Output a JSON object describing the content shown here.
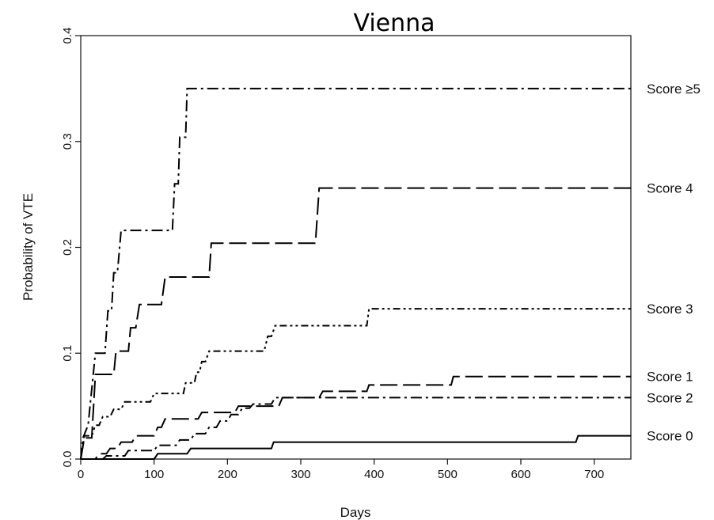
{
  "chart_data": {
    "type": "line",
    "title": "Vienna",
    "xlabel": "Days",
    "ylabel": "Probability of VTE",
    "xlim": [
      0,
      750
    ],
    "ylim": [
      0,
      0.4
    ],
    "xticks": [
      "0",
      "100",
      "200",
      "300",
      "400",
      "500",
      "600",
      "700"
    ],
    "yticks": [
      "0.0",
      "0.1",
      "0.2",
      "0.3",
      "0.4"
    ],
    "grid": false,
    "legend": "direct labels at right end of each line",
    "series": [
      {
        "name": "Score ≥5",
        "dash": "dashdot",
        "points": [
          [
            0,
            0
          ],
          [
            3,
            0.02
          ],
          [
            10,
            0.032
          ],
          [
            20,
            0.1
          ],
          [
            33,
            0.1
          ],
          [
            37,
            0.14
          ],
          [
            42,
            0.14
          ],
          [
            45,
            0.176
          ],
          [
            50,
            0.176
          ],
          [
            55,
            0.216
          ],
          [
            125,
            0.216
          ],
          [
            128,
            0.26
          ],
          [
            133,
            0.26
          ],
          [
            135,
            0.304
          ],
          [
            143,
            0.304
          ],
          [
            145,
            0.35
          ],
          [
            750,
            0.35
          ]
        ]
      },
      {
        "name": "Score 4",
        "dash": "longdash",
        "points": [
          [
            0,
            0
          ],
          [
            5,
            0.02
          ],
          [
            15,
            0.02
          ],
          [
            20,
            0.08
          ],
          [
            45,
            0.08
          ],
          [
            48,
            0.102
          ],
          [
            65,
            0.102
          ],
          [
            68,
            0.124
          ],
          [
            75,
            0.124
          ],
          [
            80,
            0.146
          ],
          [
            110,
            0.146
          ],
          [
            115,
            0.172
          ],
          [
            175,
            0.172
          ],
          [
            178,
            0.204
          ],
          [
            320,
            0.204
          ],
          [
            325,
            0.256
          ],
          [
            750,
            0.256
          ]
        ]
      },
      {
        "name": "Score 3",
        "dash": "dashdotdot",
        "points": [
          [
            0,
            0
          ],
          [
            5,
            0.022
          ],
          [
            15,
            0.022
          ],
          [
            20,
            0.032
          ],
          [
            25,
            0.032
          ],
          [
            30,
            0.04
          ],
          [
            40,
            0.04
          ],
          [
            45,
            0.047
          ],
          [
            55,
            0.047
          ],
          [
            60,
            0.054
          ],
          [
            95,
            0.054
          ],
          [
            100,
            0.062
          ],
          [
            140,
            0.062
          ],
          [
            143,
            0.072
          ],
          [
            155,
            0.072
          ],
          [
            158,
            0.082
          ],
          [
            162,
            0.082
          ],
          [
            165,
            0.092
          ],
          [
            170,
            0.092
          ],
          [
            175,
            0.102
          ],
          [
            250,
            0.102
          ],
          [
            255,
            0.116
          ],
          [
            260,
            0.116
          ],
          [
            265,
            0.126
          ],
          [
            390,
            0.126
          ],
          [
            393,
            0.142
          ],
          [
            750,
            0.142
          ]
        ]
      },
      {
        "name": "Score 1",
        "dash": "longdash",
        "points": [
          [
            0,
            0
          ],
          [
            20,
            0
          ],
          [
            25,
            0.005
          ],
          [
            35,
            0.005
          ],
          [
            40,
            0.01
          ],
          [
            50,
            0.01
          ],
          [
            55,
            0.016
          ],
          [
            70,
            0.016
          ],
          [
            75,
            0.022
          ],
          [
            100,
            0.022
          ],
          [
            105,
            0.03
          ],
          [
            110,
            0.03
          ],
          [
            115,
            0.038
          ],
          [
            160,
            0.038
          ],
          [
            165,
            0.044
          ],
          [
            210,
            0.044
          ],
          [
            215,
            0.05
          ],
          [
            270,
            0.05
          ],
          [
            275,
            0.058
          ],
          [
            325,
            0.058
          ],
          [
            330,
            0.064
          ],
          [
            390,
            0.064
          ],
          [
            393,
            0.07
          ],
          [
            505,
            0.07
          ],
          [
            508,
            0.078
          ],
          [
            750,
            0.078
          ]
        ]
      },
      {
        "name": "Score 2",
        "dash": "dashdot",
        "points": [
          [
            0,
            0
          ],
          [
            30,
            0
          ],
          [
            35,
            0.003
          ],
          [
            60,
            0.003
          ],
          [
            65,
            0.008
          ],
          [
            100,
            0.008
          ],
          [
            105,
            0.013
          ],
          [
            130,
            0.013
          ],
          [
            135,
            0.018
          ],
          [
            150,
            0.018
          ],
          [
            155,
            0.024
          ],
          [
            170,
            0.024
          ],
          [
            175,
            0.03
          ],
          [
            185,
            0.03
          ],
          [
            190,
            0.036
          ],
          [
            200,
            0.036
          ],
          [
            205,
            0.042
          ],
          [
            215,
            0.042
          ],
          [
            220,
            0.048
          ],
          [
            230,
            0.048
          ],
          [
            235,
            0.052
          ],
          [
            260,
            0.052
          ],
          [
            265,
            0.058
          ],
          [
            750,
            0.058
          ]
        ]
      },
      {
        "name": "Score 0",
        "dash": "solid",
        "points": [
          [
            0,
            0
          ],
          [
            100,
            0
          ],
          [
            105,
            0.005
          ],
          [
            145,
            0.005
          ],
          [
            150,
            0.01
          ],
          [
            260,
            0.01
          ],
          [
            263,
            0.016
          ],
          [
            675,
            0.016
          ],
          [
            678,
            0.022
          ],
          [
            750,
            0.022
          ]
        ]
      }
    ]
  }
}
